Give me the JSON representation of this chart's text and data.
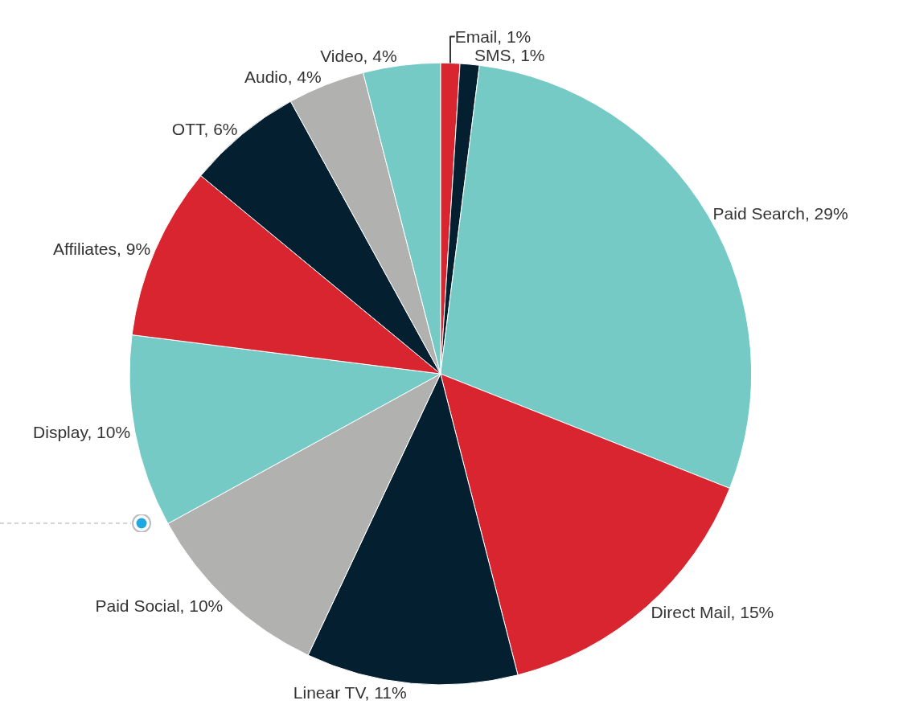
{
  "chart_data": {
    "type": "pie",
    "categories": [
      "Email, 1%",
      "SMS, 1%",
      "Paid Search, 29%",
      "Direct Mail, 15%",
      "Linear TV, 11%",
      "Paid Social, 10%",
      "Display, 10%",
      "Affiliates, 9%",
      "OTT, 6%",
      "Audio, 4%",
      "Video, 4%"
    ],
    "values": [
      1,
      1,
      29,
      15,
      11,
      10,
      10,
      9,
      6,
      4,
      4
    ],
    "colors": [
      "#d9252f",
      "#041f2f",
      "#76cac6",
      "#d9252f",
      "#041f2f",
      "#b1b1b0",
      "#76cac6",
      "#d9252f",
      "#041f2f",
      "#b1b1b0",
      "#76cac6"
    ],
    "legend": false
  }
}
